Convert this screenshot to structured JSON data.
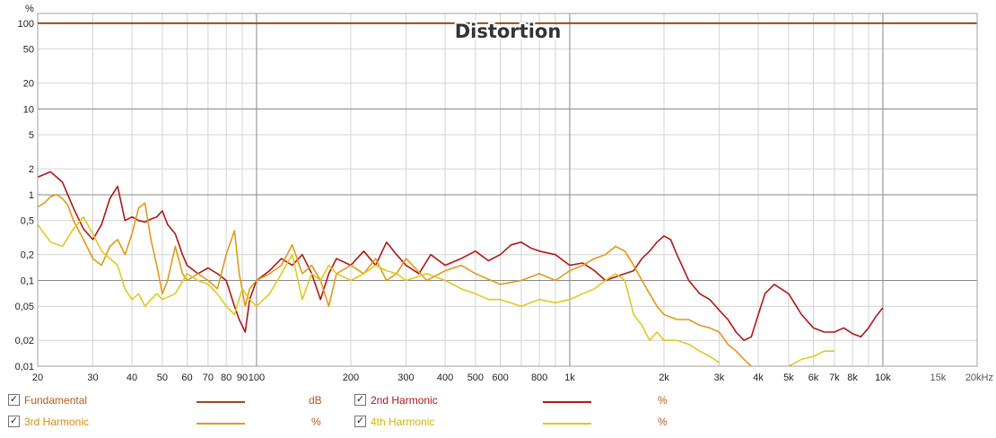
{
  "chart_data": {
    "type": "line",
    "title": "Distortion",
    "ylabel": "%",
    "xlabel": "",
    "x_scale": "log",
    "y_scale": "log",
    "xlim": [
      20,
      20000
    ],
    "ylim": [
      0.01,
      130
    ],
    "grid": true,
    "x_ticks": [
      {
        "v": 20,
        "label": "20"
      },
      {
        "v": 30,
        "label": "30"
      },
      {
        "v": 40,
        "label": "40"
      },
      {
        "v": 50,
        "label": "50"
      },
      {
        "v": 60,
        "label": "60"
      },
      {
        "v": 70,
        "label": "70"
      },
      {
        "v": 80,
        "label": "80"
      },
      {
        "v": 90,
        "label": "90"
      },
      {
        "v": 100,
        "label": "100"
      },
      {
        "v": 200,
        "label": "200"
      },
      {
        "v": 300,
        "label": "300"
      },
      {
        "v": 400,
        "label": "400"
      },
      {
        "v": 500,
        "label": "500"
      },
      {
        "v": 600,
        "label": "600"
      },
      {
        "v": 800,
        "label": "800"
      },
      {
        "v": 1000,
        "label": "1k"
      },
      {
        "v": 2000,
        "label": "2k"
      },
      {
        "v": 3000,
        "label": "3k"
      },
      {
        "v": 4000,
        "label": "4k"
      },
      {
        "v": 5000,
        "label": "5k"
      },
      {
        "v": 6000,
        "label": "6k"
      },
      {
        "v": 7000,
        "label": "7k"
      },
      {
        "v": 8000,
        "label": "8k"
      },
      {
        "v": 10000,
        "label": "10k"
      },
      {
        "v": 15000,
        "label": "15k"
      },
      {
        "v": 20000,
        "label": "20kHz"
      }
    ],
    "y_ticks": [
      {
        "v": 100,
        "label": "100"
      },
      {
        "v": 50,
        "label": "50"
      },
      {
        "v": 20,
        "label": "20"
      },
      {
        "v": 10,
        "label": "10"
      },
      {
        "v": 5,
        "label": "5"
      },
      {
        "v": 2,
        "label": "2"
      },
      {
        "v": 1,
        "label": "1"
      },
      {
        "v": 0.5,
        "label": "0,5"
      },
      {
        "v": 0.2,
        "label": "0,2"
      },
      {
        "v": 0.1,
        "label": "0,1"
      },
      {
        "v": 0.05,
        "label": "0,05"
      },
      {
        "v": 0.02,
        "label": "0,02"
      },
      {
        "v": 0.01,
        "label": "0,01"
      }
    ],
    "series": [
      {
        "name": "Fundamental",
        "color": "#9a4a1a",
        "unit": "dB",
        "x": [
          20,
          20000
        ],
        "y": [
          100,
          100
        ]
      },
      {
        "name": "2nd Harmonic",
        "color": "#b01818",
        "unit": "%",
        "x": [
          20,
          22,
          24,
          26,
          28,
          30,
          32,
          34,
          36,
          38,
          40,
          42,
          44,
          46,
          48,
          50,
          52,
          55,
          58,
          60,
          65,
          70,
          75,
          80,
          85,
          88,
          92,
          95,
          100,
          110,
          120,
          130,
          140,
          150,
          160,
          170,
          180,
          200,
          220,
          240,
          260,
          280,
          300,
          330,
          360,
          400,
          450,
          500,
          550,
          600,
          650,
          700,
          750,
          800,
          900,
          1000,
          1100,
          1200,
          1300,
          1400,
          1500,
          1600,
          1700,
          1800,
          1900,
          2000,
          2100,
          2200,
          2400,
          2600,
          2800,
          3000,
          3200,
          3400,
          3600,
          3800,
          4000,
          4200,
          4500,
          5000,
          5500,
          6000,
          6500,
          7000,
          7500,
          8000,
          8500,
          9000,
          9500,
          10000
        ],
        "y": [
          1.6,
          1.85,
          1.4,
          0.7,
          0.4,
          0.3,
          0.45,
          0.9,
          1.25,
          0.5,
          0.55,
          0.5,
          0.48,
          0.52,
          0.55,
          0.65,
          0.45,
          0.35,
          0.2,
          0.15,
          0.12,
          0.14,
          0.12,
          0.1,
          0.05,
          0.035,
          0.025,
          0.06,
          0.1,
          0.13,
          0.18,
          0.15,
          0.2,
          0.12,
          0.06,
          0.12,
          0.18,
          0.15,
          0.22,
          0.15,
          0.28,
          0.2,
          0.15,
          0.12,
          0.2,
          0.15,
          0.18,
          0.22,
          0.17,
          0.2,
          0.26,
          0.28,
          0.24,
          0.22,
          0.2,
          0.15,
          0.16,
          0.13,
          0.1,
          0.11,
          0.12,
          0.13,
          0.18,
          0.22,
          0.28,
          0.33,
          0.3,
          0.2,
          0.1,
          0.07,
          0.06,
          0.045,
          0.035,
          0.025,
          0.02,
          0.022,
          0.04,
          0.07,
          0.09,
          0.07,
          0.04,
          0.028,
          0.025,
          0.025,
          0.028,
          0.024,
          0.022,
          0.028,
          0.038,
          0.048
        ]
      },
      {
        "name": "3rd Harmonic",
        "color": "#e09a18",
        "unit": "%",
        "x": [
          20,
          21,
          22,
          23,
          24,
          25,
          26,
          28,
          30,
          32,
          34,
          36,
          38,
          40,
          42,
          44,
          46,
          48,
          50,
          52,
          55,
          58,
          60,
          65,
          70,
          75,
          80,
          85,
          88,
          92,
          95,
          100,
          110,
          120,
          130,
          140,
          150,
          160,
          170,
          180,
          200,
          220,
          240,
          260,
          280,
          300,
          350,
          400,
          450,
          500,
          600,
          700,
          800,
          900,
          1000,
          1100,
          1200,
          1300,
          1400,
          1500,
          1600,
          1700,
          1800,
          1900,
          2000,
          2200,
          2400,
          2600,
          2800,
          3000,
          3200,
          3400,
          3600,
          3800
        ],
        "y": [
          0.72,
          0.8,
          0.95,
          1.0,
          0.9,
          0.75,
          0.5,
          0.3,
          0.18,
          0.15,
          0.25,
          0.3,
          0.2,
          0.35,
          0.7,
          0.8,
          0.3,
          0.15,
          0.07,
          0.1,
          0.25,
          0.12,
          0.1,
          0.12,
          0.1,
          0.08,
          0.2,
          0.38,
          0.12,
          0.05,
          0.08,
          0.1,
          0.12,
          0.15,
          0.26,
          0.12,
          0.15,
          0.1,
          0.05,
          0.12,
          0.15,
          0.12,
          0.18,
          0.1,
          0.12,
          0.18,
          0.1,
          0.13,
          0.15,
          0.12,
          0.09,
          0.1,
          0.12,
          0.1,
          0.13,
          0.15,
          0.18,
          0.2,
          0.25,
          0.22,
          0.15,
          0.1,
          0.07,
          0.05,
          0.04,
          0.035,
          0.035,
          0.03,
          0.028,
          0.025,
          0.018,
          0.015,
          0.012,
          0.01
        ]
      },
      {
        "name": "4th Harmonic",
        "color": "#e2c81e",
        "unit": "%",
        "x": [
          20,
          22,
          24,
          26,
          28,
          30,
          32,
          34,
          36,
          38,
          40,
          42,
          44,
          46,
          48,
          50,
          55,
          60,
          65,
          70,
          75,
          80,
          85,
          90,
          95,
          100,
          110,
          120,
          130,
          140,
          150,
          160,
          170,
          180,
          200,
          220,
          240,
          260,
          280,
          300,
          350,
          400,
          450,
          500,
          550,
          600,
          700,
          800,
          900,
          1000,
          1100,
          1200,
          1300,
          1400,
          1500,
          1600,
          1700,
          1800,
          1900,
          2000,
          2200,
          2400,
          2600,
          2800,
          3000,
          null,
          5000,
          5500,
          6000,
          6500,
          7000
        ],
        "y": [
          0.45,
          0.28,
          0.25,
          0.4,
          0.55,
          0.35,
          0.22,
          0.18,
          0.15,
          0.08,
          0.06,
          0.07,
          0.05,
          0.06,
          0.07,
          0.06,
          0.07,
          0.12,
          0.1,
          0.09,
          0.07,
          0.05,
          0.04,
          0.08,
          0.06,
          0.05,
          0.07,
          0.12,
          0.2,
          0.06,
          0.12,
          0.1,
          0.15,
          0.12,
          0.1,
          0.12,
          0.15,
          0.13,
          0.12,
          0.1,
          0.12,
          0.1,
          0.08,
          0.07,
          0.06,
          0.06,
          0.05,
          0.06,
          0.055,
          0.06,
          0.07,
          0.08,
          0.1,
          0.12,
          0.1,
          0.04,
          0.03,
          0.02,
          0.025,
          0.02,
          0.02,
          0.018,
          0.015,
          0.013,
          0.011,
          null,
          0.01,
          0.012,
          0.013,
          0.015,
          0.015
        ]
      }
    ]
  },
  "legend": [
    {
      "name": "Fundamental",
      "unit": "dB",
      "checked": "✓"
    },
    {
      "name": "2nd Harmonic",
      "unit": "%",
      "checked": "✓"
    },
    {
      "name": "3rd Harmonic",
      "unit": "%",
      "checked": "✓"
    },
    {
      "name": "4th Harmonic",
      "unit": "%",
      "checked": "✓"
    }
  ],
  "colors": {
    "frame": "#a0a0a0",
    "grid_major": "#8a8a8a",
    "grid_minor": "#d4d4d4",
    "label": "#222222"
  }
}
